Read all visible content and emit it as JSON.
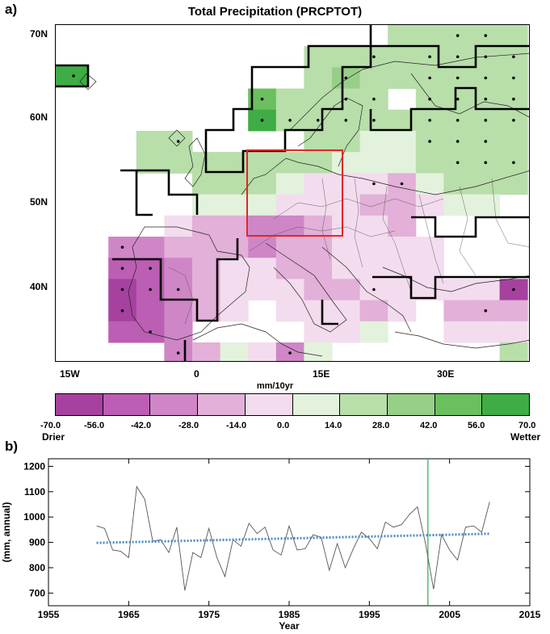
{
  "panel_a_label": "a)",
  "panel_b_label": "b)",
  "map": {
    "title": "Total Precipitation (PRCPTOT)",
    "lat_labels": [
      "70N",
      "60N",
      "50N",
      "40N"
    ],
    "lon_labels": [
      "15W",
      "0",
      "15E",
      "30E"
    ],
    "units": "mm/10yr",
    "box_color": "#e32626"
  },
  "colorbar": {
    "labels": [
      "-70.0",
      "-56.0",
      "-42.0",
      "-28.0",
      "-14.0",
      "0.0",
      "14.0",
      "28.0",
      "42.0",
      "56.0",
      "70.0"
    ],
    "colors": [
      "#a6419f",
      "#bc5eb4",
      "#cf86c7",
      "#e2b0d8",
      "#f3dcee",
      "#e3f2dc",
      "#b8deaa",
      "#97cf88",
      "#6cbf5e",
      "#3fac45"
    ],
    "left_word": "Drier",
    "right_word": "Wetter"
  },
  "chart_data": {
    "type": "line",
    "title": "",
    "xlabel": "Year",
    "ylabel": "(mm, annual)",
    "xlim": [
      1955,
      2015
    ],
    "ylim": [
      650,
      1230
    ],
    "xticks": [
      1955,
      1965,
      1975,
      1985,
      1995,
      2005,
      2015
    ],
    "yticks": [
      700,
      800,
      900,
      1000,
      1100,
      1200
    ],
    "series": [
      {
        "x": [
          1961,
          1962,
          1963,
          1964,
          1965,
          1966,
          1967,
          1968,
          1969,
          1970,
          1971,
          1972,
          1973,
          1974,
          1975,
          1976,
          1977,
          1978,
          1979,
          1980,
          1981,
          1982,
          1983,
          1984,
          1985,
          1986,
          1987,
          1988,
          1989,
          1990,
          1991,
          1992,
          1993,
          1994,
          1995,
          1996,
          1997,
          1998,
          1999,
          2000,
          2001,
          2002,
          2003,
          2004,
          2005,
          2006,
          2007,
          2008,
          2009,
          2010
        ],
        "values": [
          965,
          955,
          870,
          865,
          840,
          1120,
          1070,
          905,
          910,
          860,
          960,
          710,
          860,
          840,
          955,
          840,
          765,
          910,
          885,
          975,
          935,
          960,
          870,
          850,
          965,
          870,
          875,
          930,
          920,
          790,
          895,
          800,
          875,
          940,
          915,
          875,
          980,
          960,
          970,
          1010,
          1040,
          895,
          715,
          930,
          870,
          830,
          960,
          965,
          940,
          1060
        ],
        "color": "#555555"
      },
      {
        "x": [
          1961,
          2010
        ],
        "values": [
          898,
          934
        ],
        "color": "#4a89c8",
        "style": "dotted"
      }
    ],
    "vertical_line": {
      "x": 2002.3,
      "color": "#2ea84e"
    }
  }
}
